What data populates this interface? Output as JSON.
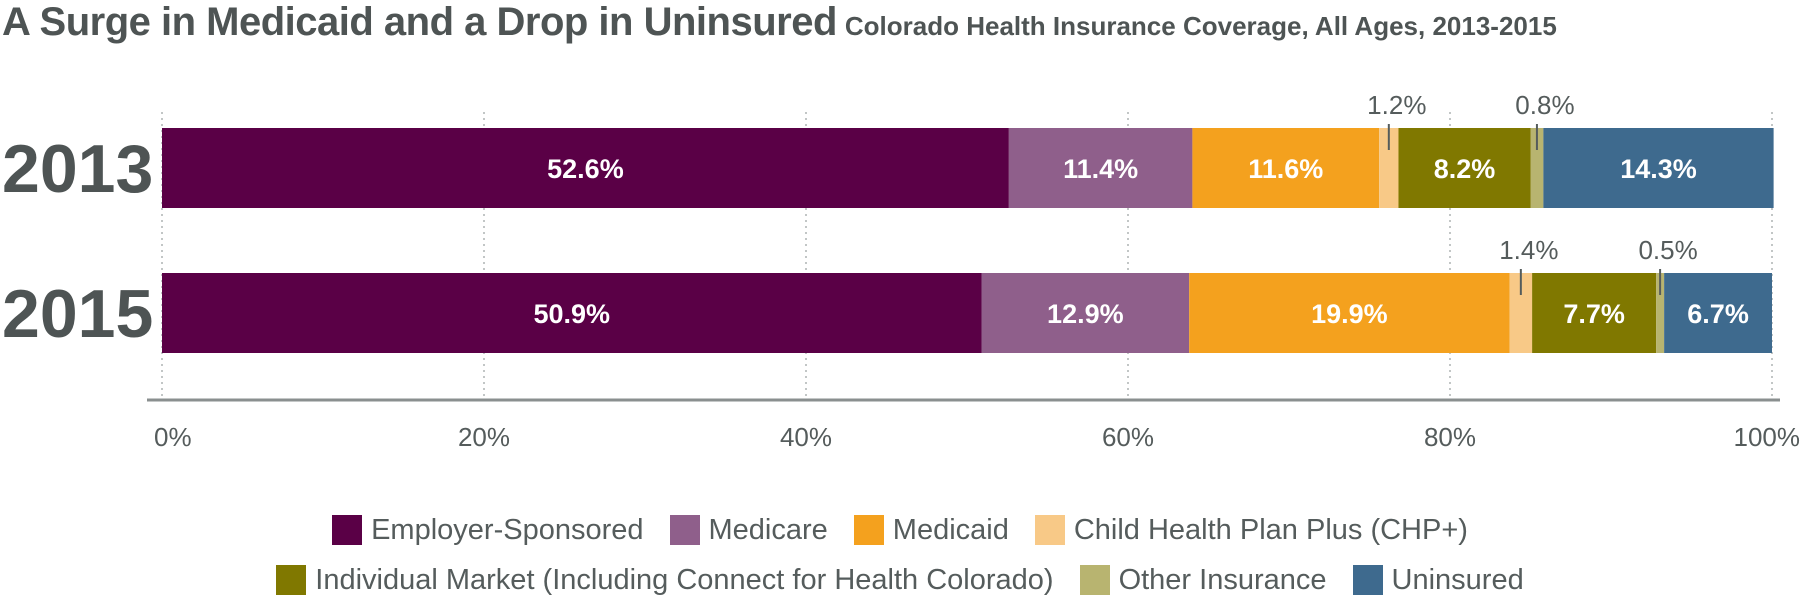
{
  "title": "A Surge in Medicaid and a Drop in Uninsured",
  "subtitle": "Colorado Health Insurance Coverage, All Ages, 2013-2015",
  "chart_data": {
    "type": "bar",
    "orientation": "horizontal",
    "stacked": true,
    "categories": [
      "2013",
      "2015"
    ],
    "series": [
      {
        "name": "Employer-Sponsored",
        "color": "#5a0046",
        "values": [
          52.6,
          50.9
        ],
        "labels": [
          "52.6%",
          "50.9%"
        ]
      },
      {
        "name": "Medicare",
        "color": "#8f5f8b",
        "values": [
          11.4,
          12.9
        ],
        "labels": [
          "11.4%",
          "12.9%"
        ]
      },
      {
        "name": "Medicaid",
        "color": "#f4a11e",
        "values": [
          11.6,
          19.9
        ],
        "labels": [
          "11.6%",
          "19.9%"
        ]
      },
      {
        "name": "Child Health Plan Plus (CHP+)",
        "color": "#f8c987",
        "values": [
          1.2,
          1.4
        ],
        "labels": [
          "1.2%",
          "1.4%"
        ]
      },
      {
        "name": "Individual Market (Including Connect for Health Colorado)",
        "color": "#807800",
        "values": [
          8.2,
          7.7
        ],
        "labels": [
          "8.2%",
          "7.7%"
        ]
      },
      {
        "name": "Other Insurance",
        "color": "#b8b470",
        "values": [
          0.8,
          0.5
        ],
        "labels": [
          "0.8%",
          "0.5%"
        ]
      },
      {
        "name": "Uninsured",
        "color": "#3e6a8e",
        "values": [
          14.3,
          6.7
        ],
        "labels": [
          "14.3%",
          "6.7%"
        ]
      }
    ],
    "callout_series": [
      "Child Health Plan Plus (CHP+)",
      "Other Insurance"
    ],
    "xlim": [
      0,
      100
    ],
    "xticks": [
      "0%",
      "20%",
      "40%",
      "60%",
      "80%",
      "100%"
    ],
    "grid": "vertical dotted",
    "legend_position": "bottom"
  },
  "legend": {
    "rows": [
      [
        {
          "label": "Employer-Sponsored",
          "color": "#5a0046"
        },
        {
          "label": "Medicare",
          "color": "#8f5f8b"
        },
        {
          "label": "Medicaid",
          "color": "#f4a11e"
        },
        {
          "label": "Child Health Plan Plus (CHP+)",
          "color": "#f8c987"
        }
      ],
      [
        {
          "label": "Individual Market (Including Connect for Health Colorado)",
          "color": "#807800"
        },
        {
          "label": "Other Insurance",
          "color": "#b8b470"
        },
        {
          "label": "Uninsured",
          "color": "#3e6a8e"
        }
      ]
    ]
  }
}
